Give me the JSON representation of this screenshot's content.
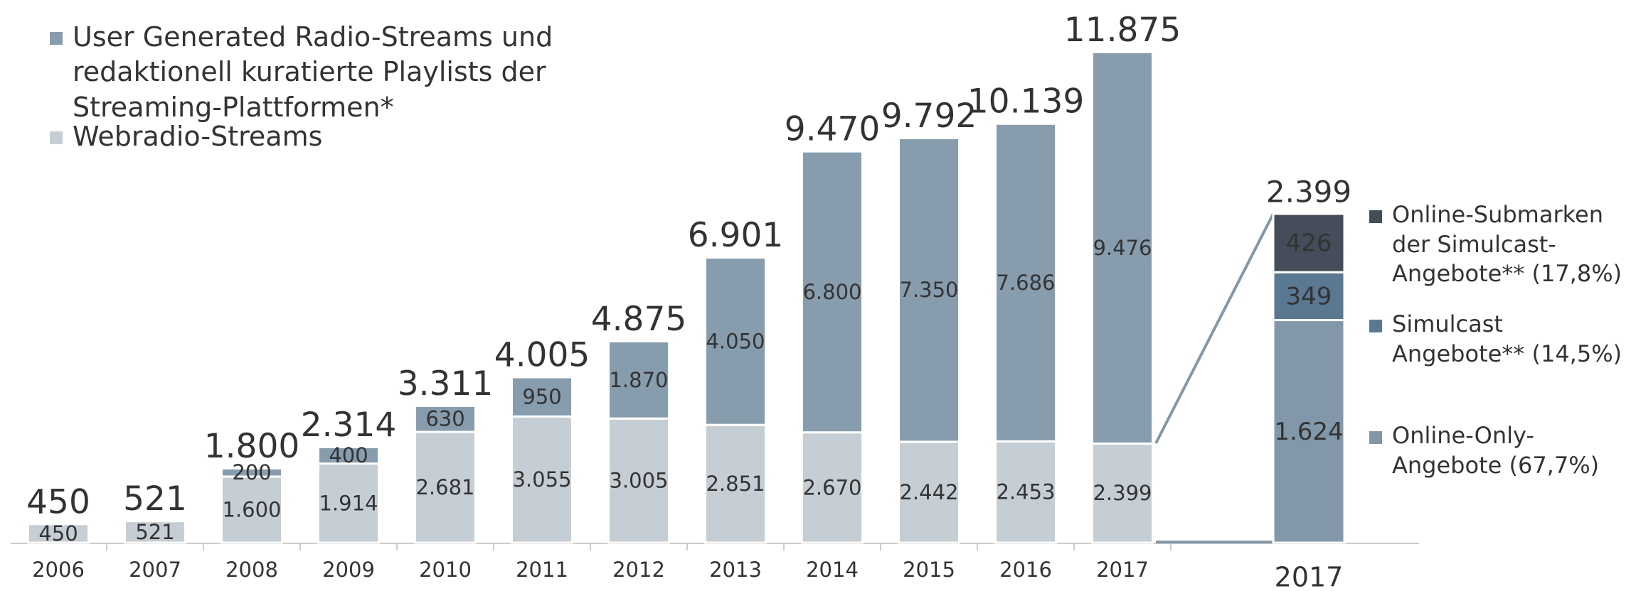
{
  "chart_data": [
    {
      "type": "stacked-bar",
      "categories": [
        "2006",
        "2007",
        "2008",
        "2009",
        "2010",
        "2011",
        "2012",
        "2013",
        "2014",
        "2015",
        "2016",
        "2017"
      ],
      "series": [
        {
          "name": "Webradio-Streams",
          "color": "#c5ced4",
          "values": [
            450,
            521,
            1600,
            1914,
            2681,
            3055,
            3005,
            2851,
            2670,
            2442,
            2453,
            2399
          ],
          "value_labels": [
            "450",
            "521",
            "1.600",
            "1.914",
            "2.681",
            "3.055",
            "3.005",
            "2.851",
            "2.670",
            "2.442",
            "2.453",
            "2.399"
          ]
        },
        {
          "name": "User Generated Radio-Streams und redaktionell kuratierte Playlists der Streaming-Plattformen*",
          "color": "#879dad",
          "values": [
            null,
            null,
            200,
            400,
            630,
            950,
            1870,
            4050,
            6800,
            7350,
            7686,
            9476
          ],
          "value_labels": [
            null,
            null,
            "200",
            "400",
            "630",
            "950",
            "1.870",
            "4.050",
            "6.800",
            "7.350",
            "7.686",
            "9.476"
          ]
        }
      ],
      "totals": {
        "values": [
          450,
          521,
          1800,
          2314,
          3311,
          4005,
          4875,
          6901,
          9470,
          9792,
          10139,
          11875
        ],
        "value_labels": [
          "450",
          "521",
          "1.800",
          "2.314",
          "3.311",
          "4.005",
          "4.875",
          "6.901",
          "9.470",
          "9.792",
          "10.139",
          "11.875"
        ]
      },
      "ylim": [
        0,
        12000
      ]
    },
    {
      "type": "stacked-bar",
      "categories": [
        "2017"
      ],
      "series": [
        {
          "name": "Online-Only-Angebote (67,7%)",
          "color": "#8298aa",
          "values": [
            1624
          ],
          "value_labels": [
            "1.624"
          ]
        },
        {
          "name": "Simulcast Angebote** (14,5%)",
          "color": "#5b7892",
          "values": [
            349
          ],
          "value_labels": [
            "349"
          ]
        },
        {
          "name": "Online-Submarken der Simulcast-Angebote** (17,8%)",
          "color": "#454d5a",
          "values": [
            426
          ],
          "value_labels": [
            "426"
          ]
        }
      ],
      "totals": {
        "values": [
          2399
        ],
        "value_labels": [
          "2.399"
        ]
      },
      "ylim": [
        0,
        2500
      ]
    }
  ]
}
